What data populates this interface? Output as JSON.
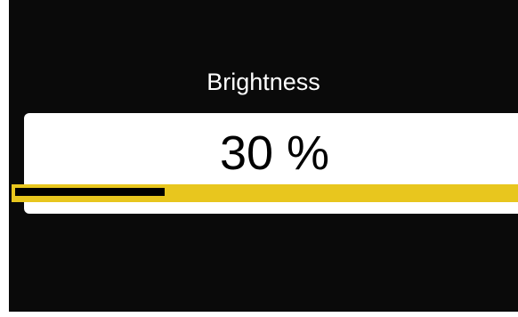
{
  "osd": {
    "title": "Brightness",
    "value_text": "30 %",
    "level_percent": 30
  },
  "colors": {
    "background": "#0a0a0a",
    "card": "#ffffff",
    "track": "#e8c61e",
    "fill": "#000000"
  }
}
